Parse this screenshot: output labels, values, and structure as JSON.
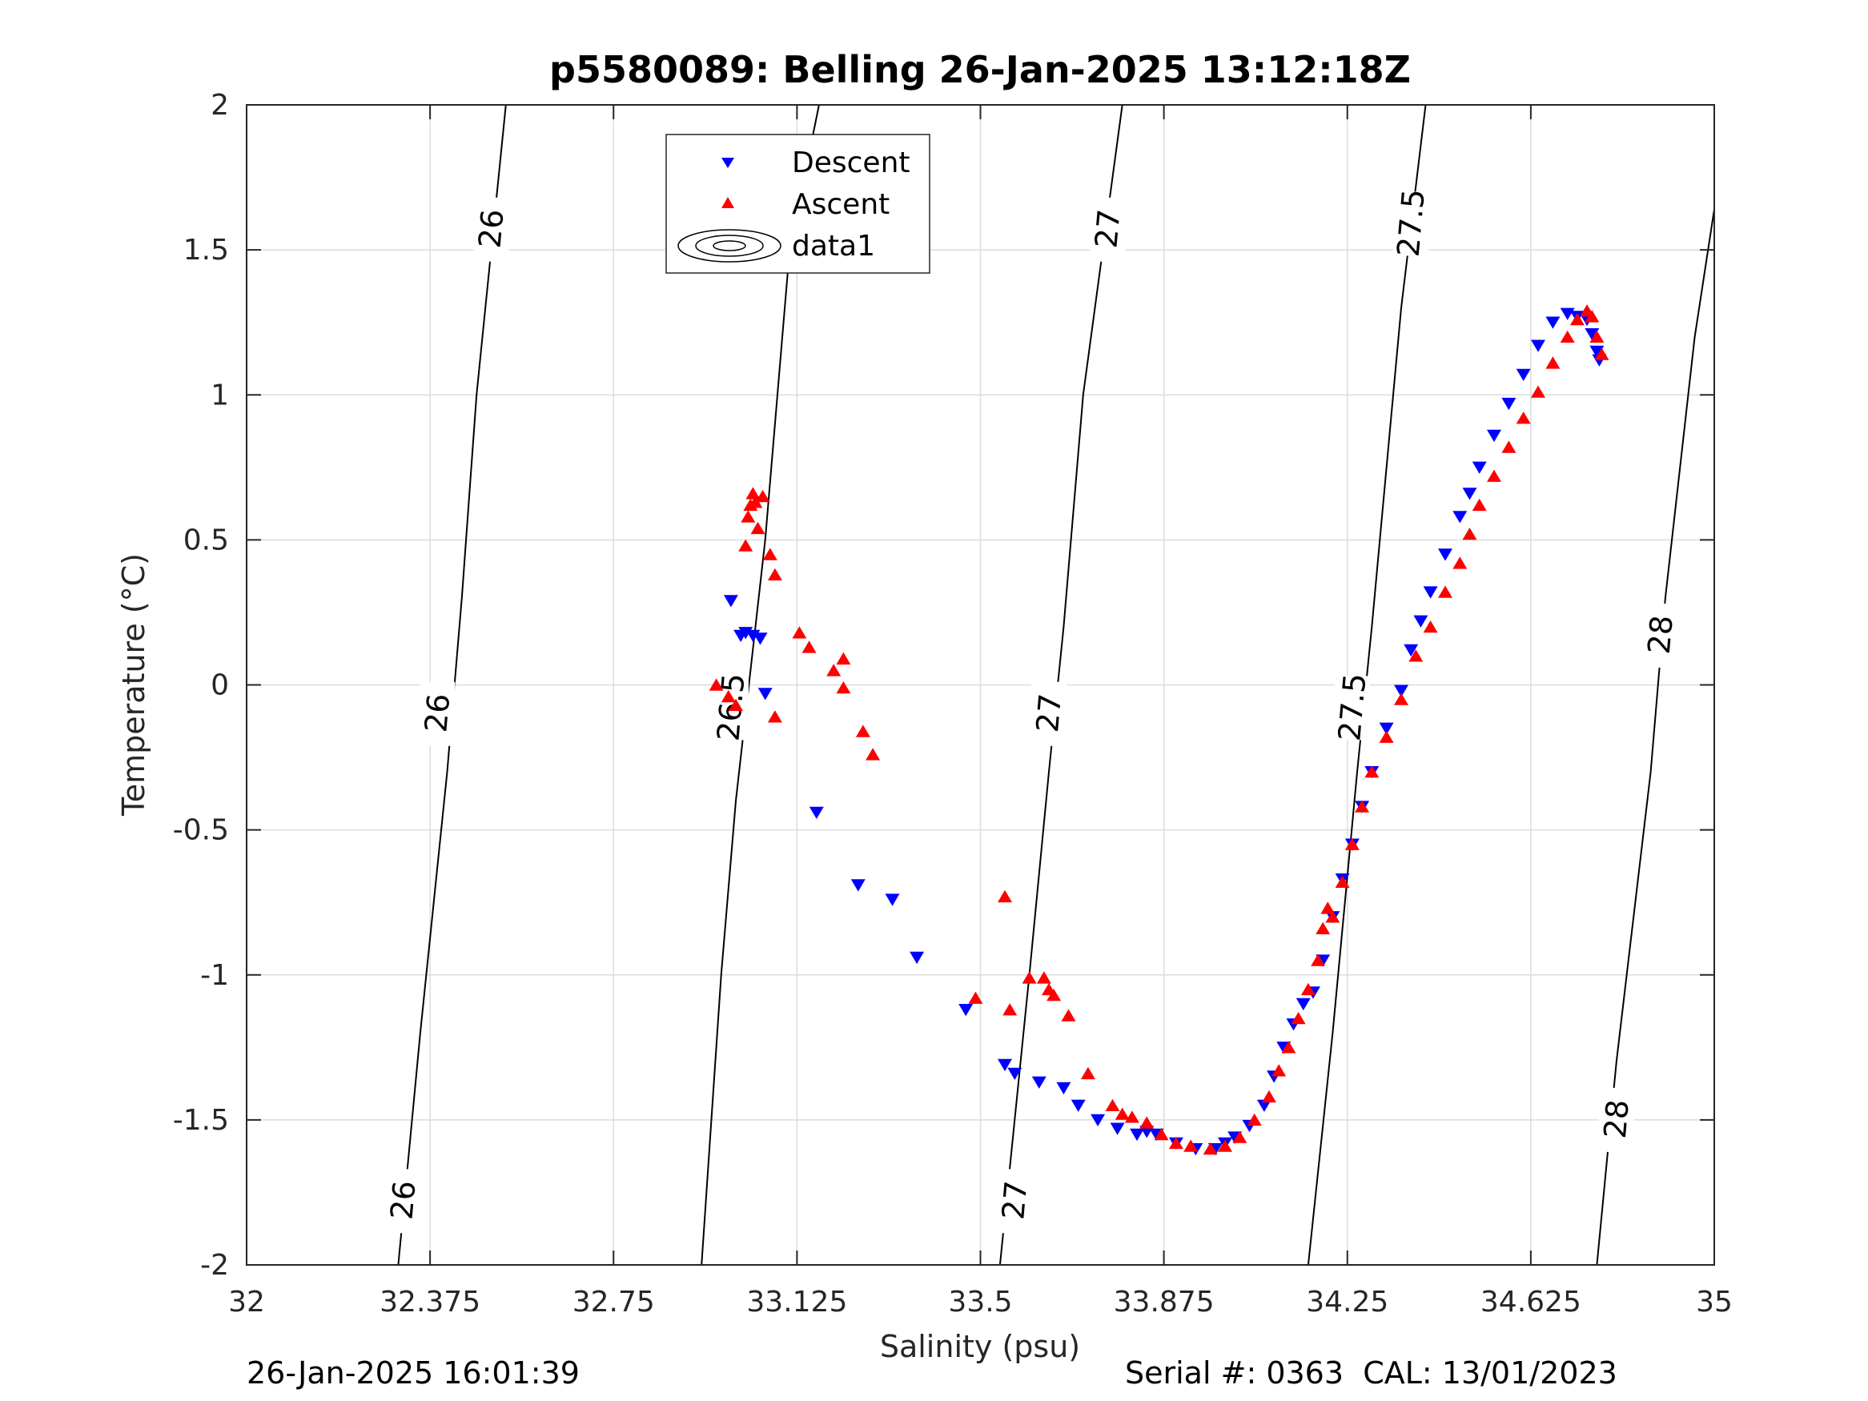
{
  "chart_data": {
    "type": "scatter",
    "title": "p5580089: Belling 26-Jan-2025 13:12:18Z",
    "xlabel": "Salinity (psu)",
    "ylabel": "Temperature (°C)",
    "xlim": [
      32,
      35
    ],
    "ylim": [
      -2,
      2
    ],
    "xticks": [
      32,
      32.375,
      32.75,
      33.125,
      33.5,
      33.875,
      34.25,
      34.625,
      35
    ],
    "xtick_labels": [
      "32",
      "32.375",
      "32.75",
      "33.125",
      "33.5",
      "33.875",
      "34.25",
      "34.625",
      "35"
    ],
    "yticks": [
      -2,
      -1.5,
      -1,
      -0.5,
      0,
      0.5,
      1,
      1.5,
      2
    ],
    "ytick_labels": [
      "-2",
      "-1.5",
      "-1",
      "-0.5",
      "0",
      "0.5",
      "1",
      "1.5",
      "2"
    ],
    "grid": true,
    "legend_position": "top-center",
    "legend": [
      "Descent",
      "Ascent",
      "data1"
    ],
    "colors": {
      "descent": "#0000ff",
      "ascent": "#ff0000",
      "contour": "#000000"
    },
    "contours": [
      {
        "label": "26",
        "label_positions": [
          [
            32.5,
            1.57
          ],
          [
            32.39,
            -0.1
          ],
          [
            32.32,
            -1.78
          ]
        ],
        "line": [
          [
            32.31,
            -2.0
          ],
          [
            32.355,
            -1.2
          ],
          [
            32.41,
            -0.3
          ],
          [
            32.44,
            0.3
          ],
          [
            32.47,
            1.0
          ],
          [
            32.53,
            2.0
          ]
        ]
      },
      {
        "label": "26.5",
        "label_positions": [
          [
            33.11,
            1.6
          ],
          [
            32.99,
            -0.08
          ]
        ],
        "line": [
          [
            32.93,
            -2.0
          ],
          [
            32.97,
            -1.0
          ],
          [
            33.0,
            -0.4
          ],
          [
            33.06,
            0.5
          ],
          [
            33.11,
            1.5
          ],
          [
            33.17,
            2.0
          ]
        ]
      },
      {
        "label": "27",
        "label_positions": [
          [
            33.76,
            1.57
          ],
          [
            33.64,
            -0.1
          ],
          [
            33.57,
            -1.78
          ]
        ],
        "line": [
          [
            33.54,
            -2.0
          ],
          [
            33.6,
            -1.0
          ],
          [
            33.64,
            -0.3
          ],
          [
            33.67,
            0.2
          ],
          [
            33.71,
            1.0
          ],
          [
            33.79,
            2.0
          ]
        ]
      },
      {
        "label": "27.5",
        "label_positions": [
          [
            34.38,
            1.59
          ],
          [
            34.26,
            -0.08
          ]
        ],
        "line": [
          [
            34.17,
            -2.0
          ],
          [
            34.22,
            -1.2
          ],
          [
            34.27,
            -0.3
          ],
          [
            34.3,
            0.2
          ],
          [
            34.36,
            1.3
          ],
          [
            34.41,
            2.0
          ]
        ]
      },
      {
        "label": "28",
        "label_positions": [
          [
            34.89,
            0.17
          ],
          [
            34.8,
            -1.5
          ]
        ],
        "line": [
          [
            34.76,
            -2.0
          ],
          [
            34.8,
            -1.3
          ],
          [
            34.87,
            -0.3
          ],
          [
            34.9,
            0.3
          ],
          [
            34.96,
            1.2
          ],
          [
            35.0,
            1.64
          ]
        ]
      }
    ],
    "series": [
      {
        "name": "Descent",
        "marker": "triangle-down",
        "x": [
          32.99,
          33.01,
          33.02,
          33.035,
          33.05,
          33.06,
          33.165,
          33.25,
          33.32,
          33.37,
          33.47,
          33.55,
          33.57,
          33.62,
          33.67,
          33.7,
          33.74,
          33.78,
          33.82,
          33.84,
          33.86,
          33.9,
          33.94,
          33.98,
          34.0,
          34.02,
          34.05,
          34.08,
          34.1,
          34.12,
          34.14,
          34.16,
          34.18,
          34.2,
          34.22,
          34.24,
          34.26,
          34.28,
          34.3,
          34.33,
          34.36,
          34.38,
          34.4,
          34.42,
          34.45,
          34.48,
          34.5,
          34.52,
          34.55,
          34.58,
          34.61,
          34.64,
          34.67,
          34.7,
          34.72,
          34.74,
          34.75,
          34.76,
          34.765
        ],
        "y": [
          0.29,
          0.17,
          0.18,
          0.17,
          0.16,
          -0.03,
          -0.44,
          -0.69,
          -0.74,
          -0.94,
          -1.12,
          -1.31,
          -1.34,
          -1.37,
          -1.39,
          -1.45,
          -1.5,
          -1.53,
          -1.55,
          -1.54,
          -1.55,
          -1.58,
          -1.6,
          -1.6,
          -1.58,
          -1.56,
          -1.52,
          -1.45,
          -1.35,
          -1.25,
          -1.17,
          -1.1,
          -1.06,
          -0.95,
          -0.8,
          -0.67,
          -0.55,
          -0.42,
          -0.3,
          -0.15,
          -0.02,
          0.12,
          0.22,
          0.32,
          0.45,
          0.58,
          0.66,
          0.75,
          0.86,
          0.97,
          1.07,
          1.17,
          1.25,
          1.28,
          1.27,
          1.26,
          1.21,
          1.15,
          1.12
        ]
      },
      {
        "name": "Ascent",
        "marker": "triangle-up",
        "x": [
          32.96,
          32.985,
          33.0,
          33.02,
          33.025,
          33.03,
          33.035,
          33.04,
          33.045,
          33.055,
          33.07,
          33.08,
          33.08,
          33.13,
          33.15,
          33.2,
          33.22,
          33.22,
          33.26,
          33.28,
          33.49,
          33.55,
          33.56,
          33.6,
          33.63,
          33.64,
          33.65,
          33.68,
          33.72,
          33.77,
          33.79,
          33.81,
          33.84,
          33.87,
          33.9,
          33.93,
          33.97,
          34.0,
          34.03,
          34.06,
          34.09,
          34.11,
          34.13,
          34.15,
          34.17,
          34.19,
          34.2,
          34.21,
          34.22,
          34.24,
          34.26,
          34.28,
          34.3,
          34.33,
          34.36,
          34.39,
          34.42,
          34.45,
          34.48,
          34.5,
          34.52,
          34.55,
          34.58,
          34.61,
          34.64,
          34.67,
          34.7,
          34.72,
          34.74,
          34.75,
          34.76,
          34.77
        ],
        "y": [
          0.0,
          -0.04,
          -0.07,
          0.48,
          0.58,
          0.62,
          0.66,
          0.63,
          0.54,
          0.65,
          0.45,
          0.38,
          -0.11,
          0.18,
          0.13,
          0.05,
          0.09,
          -0.01,
          -0.16,
          -0.24,
          -1.08,
          -0.73,
          -1.12,
          -1.01,
          -1.01,
          -1.05,
          -1.07,
          -1.14,
          -1.34,
          -1.45,
          -1.48,
          -1.49,
          -1.51,
          -1.55,
          -1.58,
          -1.59,
          -1.6,
          -1.59,
          -1.56,
          -1.5,
          -1.42,
          -1.33,
          -1.25,
          -1.15,
          -1.05,
          -0.95,
          -0.84,
          -0.77,
          -0.8,
          -0.68,
          -0.55,
          -0.42,
          -0.3,
          -0.18,
          -0.05,
          0.1,
          0.2,
          0.32,
          0.42,
          0.52,
          0.62,
          0.72,
          0.82,
          0.92,
          1.01,
          1.11,
          1.2,
          1.26,
          1.29,
          1.27,
          1.2,
          1.14
        ]
      }
    ]
  },
  "footer": {
    "timestamp": "26-Jan-2025 16:01:39",
    "serial": "Serial #: 0363  CAL: 13/01/2023"
  }
}
